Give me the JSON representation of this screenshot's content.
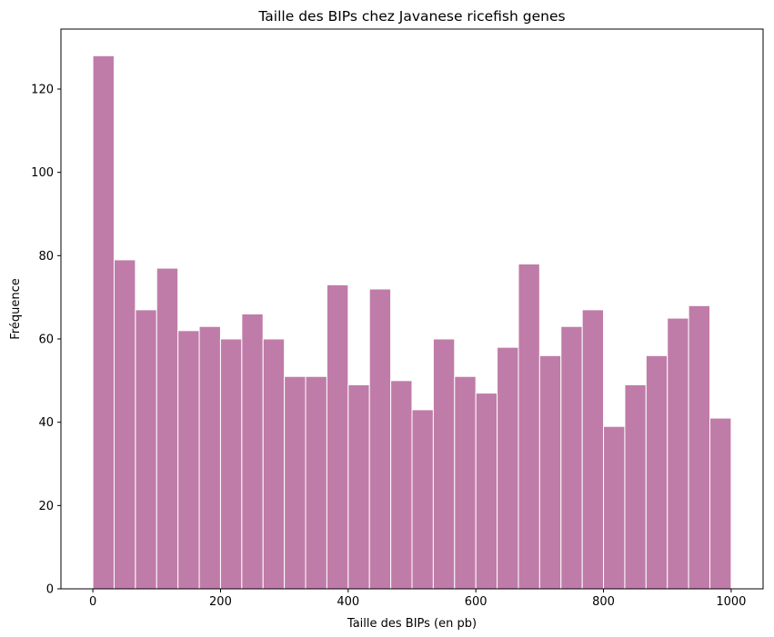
{
  "chart_data": {
    "type": "bar",
    "title": "Taille des BIPs chez Javanese ricefish genes",
    "xlabel": "Taille des BIPs (en pb)",
    "ylabel": "Fréquence",
    "bar_color": "#c07ca8",
    "bar_edge_color": "#ffffff",
    "xlim": [
      -50,
      1050
    ],
    "ylim": [
      0,
      134.4
    ],
    "bins": {
      "start": 0,
      "end": 1000,
      "count": 30
    },
    "values": [
      128,
      79,
      67,
      77,
      62,
      63,
      60,
      66,
      60,
      51,
      51,
      73,
      49,
      72,
      50,
      43,
      60,
      51,
      47,
      58,
      78,
      56,
      63,
      67,
      39,
      49,
      56,
      65,
      68,
      41
    ],
    "xticks": [
      0,
      200,
      400,
      600,
      800,
      1000
    ],
    "xtick_labels": [
      "0",
      "200",
      "400",
      "600",
      "800",
      "1000"
    ],
    "yticks": [
      0,
      20,
      40,
      60,
      80,
      100,
      120
    ],
    "ytick_labels": [
      "0",
      "20",
      "40",
      "60",
      "80",
      "100",
      "120"
    ],
    "grid": false,
    "legend": "none"
  }
}
